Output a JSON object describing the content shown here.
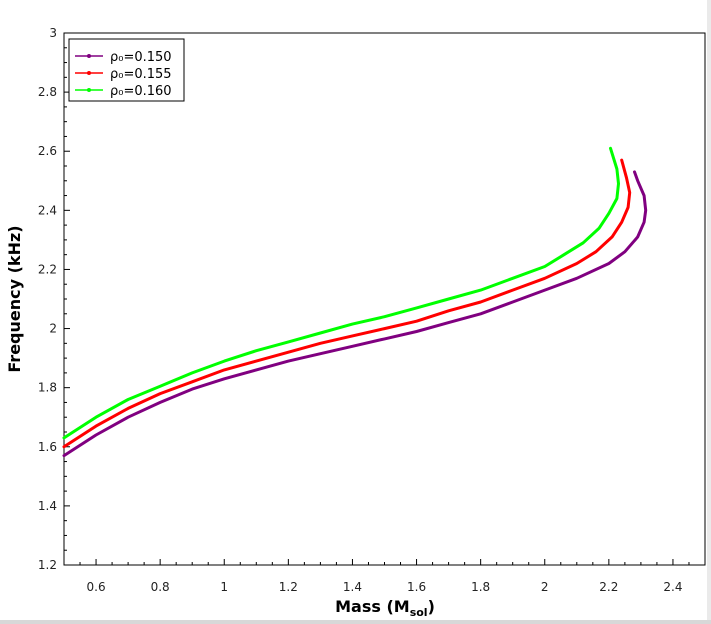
{
  "chart_data": {
    "type": "line",
    "title": "",
    "xlabel": "Mass (M",
    "xlabel_sub": "sol",
    "xlabel_close": ")",
    "ylabel": "Frequency (kHz)",
    "xlim": [
      0.5,
      2.5
    ],
    "ylim": [
      1.2,
      3.0
    ],
    "xticks": [
      "0.6",
      "0.8",
      "1",
      "1.2",
      "1.4",
      "1.6",
      "1.8",
      "2",
      "2.2",
      "2.4"
    ],
    "yticks": [
      "1.2",
      "1.4",
      "1.6",
      "1.8",
      "2",
      "2.2",
      "2.4",
      "2.6",
      "2.8",
      "3"
    ],
    "legend_position": "top-left",
    "series": [
      {
        "name": "ρ₀=0.150",
        "color": "#800080",
        "points": [
          [
            0.5,
            1.57
          ],
          [
            0.6,
            1.64
          ],
          [
            0.7,
            1.7
          ],
          [
            0.8,
            1.75
          ],
          [
            0.9,
            1.795
          ],
          [
            1.0,
            1.83
          ],
          [
            1.1,
            1.86
          ],
          [
            1.2,
            1.89
          ],
          [
            1.3,
            1.915
          ],
          [
            1.4,
            1.94
          ],
          [
            1.5,
            1.965
          ],
          [
            1.6,
            1.99
          ],
          [
            1.7,
            2.02
          ],
          [
            1.8,
            2.05
          ],
          [
            1.9,
            2.09
          ],
          [
            2.0,
            2.13
          ],
          [
            2.1,
            2.17
          ],
          [
            2.2,
            2.22
          ],
          [
            2.25,
            2.26
          ],
          [
            2.29,
            2.31
          ],
          [
            2.31,
            2.36
          ],
          [
            2.315,
            2.4
          ],
          [
            2.31,
            2.45
          ],
          [
            2.29,
            2.5
          ],
          [
            2.28,
            2.53
          ]
        ]
      },
      {
        "name": "ρ₀=0.155",
        "color": "#ff0000",
        "points": [
          [
            0.5,
            1.6
          ],
          [
            0.6,
            1.67
          ],
          [
            0.7,
            1.73
          ],
          [
            0.8,
            1.78
          ],
          [
            0.9,
            1.82
          ],
          [
            1.0,
            1.86
          ],
          [
            1.1,
            1.89
          ],
          [
            1.2,
            1.92
          ],
          [
            1.3,
            1.95
          ],
          [
            1.4,
            1.975
          ],
          [
            1.5,
            2.0
          ],
          [
            1.6,
            2.025
          ],
          [
            1.7,
            2.06
          ],
          [
            1.8,
            2.09
          ],
          [
            1.9,
            2.13
          ],
          [
            2.0,
            2.17
          ],
          [
            2.1,
            2.22
          ],
          [
            2.16,
            2.26
          ],
          [
            2.21,
            2.31
          ],
          [
            2.24,
            2.36
          ],
          [
            2.26,
            2.41
          ],
          [
            2.265,
            2.46
          ],
          [
            2.255,
            2.51
          ],
          [
            2.24,
            2.57
          ]
        ]
      },
      {
        "name": "ρ₀=0.160",
        "color": "#00ff00",
        "points": [
          [
            0.5,
            1.63
          ],
          [
            0.6,
            1.7
          ],
          [
            0.7,
            1.76
          ],
          [
            0.8,
            1.805
          ],
          [
            0.9,
            1.85
          ],
          [
            1.0,
            1.89
          ],
          [
            1.1,
            1.925
          ],
          [
            1.2,
            1.955
          ],
          [
            1.3,
            1.985
          ],
          [
            1.4,
            2.015
          ],
          [
            1.5,
            2.04
          ],
          [
            1.6,
            2.07
          ],
          [
            1.7,
            2.1
          ],
          [
            1.8,
            2.13
          ],
          [
            1.9,
            2.17
          ],
          [
            2.0,
            2.21
          ],
          [
            2.06,
            2.25
          ],
          [
            2.12,
            2.29
          ],
          [
            2.17,
            2.34
          ],
          [
            2.2,
            2.39
          ],
          [
            2.225,
            2.44
          ],
          [
            2.23,
            2.49
          ],
          [
            2.225,
            2.54
          ],
          [
            2.205,
            2.61
          ]
        ]
      }
    ]
  }
}
